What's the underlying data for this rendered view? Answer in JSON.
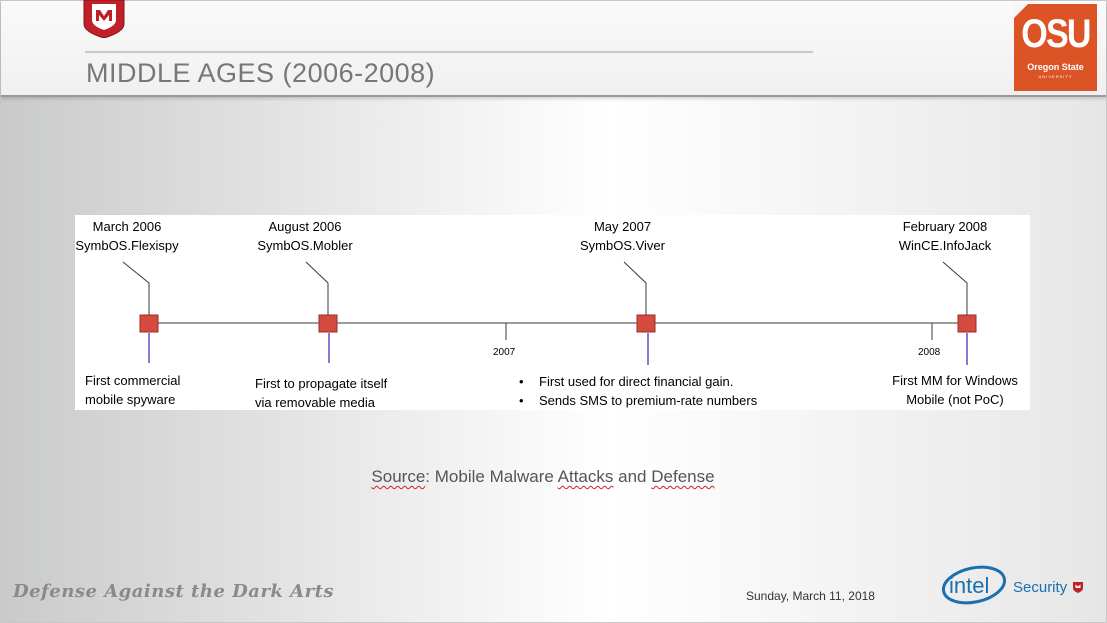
{
  "slide": {
    "title": "MIDDLE AGES (2006-2008)",
    "logo_right": {
      "big": "OSU",
      "sub": "Oregon State",
      "sub2": "UNIVERSITY"
    }
  },
  "timeline": {
    "events": [
      {
        "date": "March 2006",
        "name": "SymbOS.Flexispy",
        "desc": [
          "First commercial",
          "mobile spyware"
        ]
      },
      {
        "date": "August 2006",
        "name": "SymbOS.Mobler",
        "desc": [
          "First to propagate itself",
          "via removable media"
        ]
      },
      {
        "date": "May 2007",
        "name": "SymbOS.Viver",
        "desc_bullets": [
          "First used for direct financial gain.",
          "Sends SMS to premium-rate numbers"
        ]
      },
      {
        "date": "February 2008",
        "name": "WinCE.InfoJack",
        "desc": [
          "First MM for Windows",
          "Mobile (not PoC)"
        ]
      }
    ],
    "ticks": [
      "2007",
      "2008"
    ],
    "marker_color": "#d44a3f",
    "stem_color": "#5a4fc4"
  },
  "source": {
    "label": "Source",
    "colon": ":",
    "w1": "Mobile",
    "w2": "Malware",
    "w3": "Attacks",
    "w4": "and",
    "w5": "Defense"
  },
  "footer": {
    "left": "Defense Against the Dark Arts",
    "date": "Sunday, March 11, 2018",
    "brand": "intel",
    "brand_suffix": "Security"
  },
  "colors": {
    "accent": "#dc5426",
    "mcafee_red": "#c0202a",
    "intel_blue": "#1a6fb0"
  }
}
